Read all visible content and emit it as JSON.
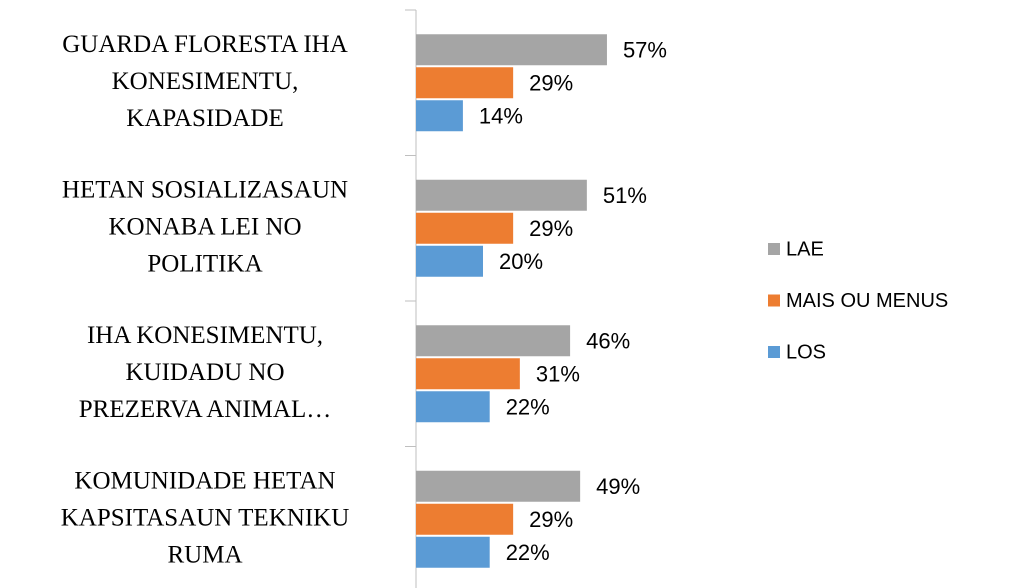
{
  "chart_data": {
    "type": "bar",
    "orientation": "horizontal",
    "categories": [
      "GUARDA FLORESTA IHA\nKONESIMENTU,\nKAPASIDADE",
      "HETAN SOSIALIZASAUN\nKONABA LEI NO\nPOLITIKA",
      "IHA KONESIMENTU,\nKUIDADU NO\nPREZERVA ANIMAL…",
      "KOMUNIDADE HETAN\nKAPSITASAUN TEKNIKU\nRUMA"
    ],
    "series": [
      {
        "name": "LAE",
        "color": "#a5a5a5",
        "values": [
          57,
          51,
          46,
          49
        ],
        "value_labels": [
          "57%",
          "51%",
          "46%",
          "49%"
        ]
      },
      {
        "name": "MAIS OU MENUS",
        "color": "#ed7d31",
        "values": [
          29,
          29,
          31,
          29
        ],
        "value_labels": [
          "29%",
          "29%",
          "31%",
          "29%"
        ]
      },
      {
        "name": "LOS",
        "color": "#5b9bd5",
        "values": [
          14,
          20,
          22,
          22
        ],
        "value_labels": [
          "14%",
          "20%",
          "22%",
          "22%"
        ]
      }
    ],
    "xlim": [
      0,
      100
    ],
    "legend": "right"
  }
}
